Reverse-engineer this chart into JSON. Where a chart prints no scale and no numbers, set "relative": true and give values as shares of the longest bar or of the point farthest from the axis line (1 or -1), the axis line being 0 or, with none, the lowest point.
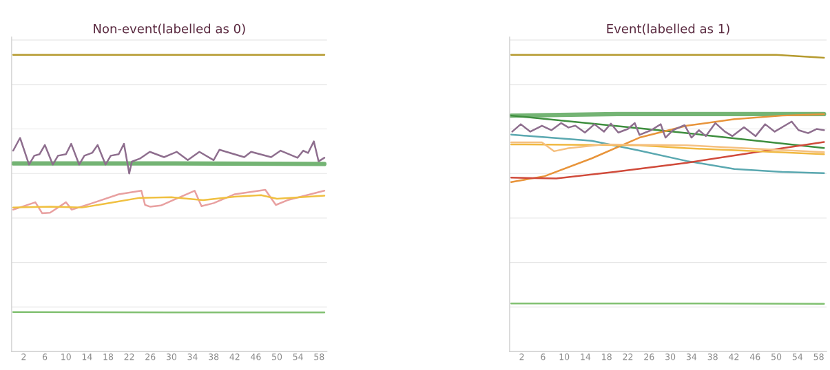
{
  "chart_data": [
    {
      "type": "line",
      "title": "Non-event(labelled as 0)",
      "relative": true,
      "grid": "y",
      "xlim": [
        -0.3,
        59.5
      ],
      "xticks": [
        2,
        6,
        10,
        14,
        18,
        22,
        26,
        30,
        34,
        38,
        42,
        46,
        50,
        54,
        58
      ],
      "series": [
        {
          "color": "#b59a2e",
          "x": [
            0,
            30,
            59
          ],
          "values": [
            1.0,
            1.0,
            1.0
          ]
        },
        {
          "color": "#74b474",
          "x": [
            0,
            30,
            59
          ],
          "values": [
            0.634,
            0.634,
            0.632
          ]
        },
        {
          "color": "#8e6e8e",
          "x": [
            0,
            1.3,
            3,
            4,
            5,
            6,
            7.5,
            8.5,
            10,
            11,
            12.5,
            13.5,
            15,
            16,
            17.5,
            18.5,
            20,
            21,
            22,
            22.5,
            24,
            25.9,
            28.6,
            31,
            33.1,
            35.3,
            38,
            39.1,
            43.8,
            45.1,
            48.9,
            50.7,
            53.9,
            55,
            55.9,
            57,
            57.9,
            59
          ],
          "values": [
            0.677,
            0.72,
            0.63,
            0.66,
            0.665,
            0.696,
            0.63,
            0.66,
            0.665,
            0.7,
            0.63,
            0.66,
            0.67,
            0.696,
            0.63,
            0.66,
            0.665,
            0.7,
            0.6,
            0.64,
            0.65,
            0.673,
            0.655,
            0.673,
            0.645,
            0.673,
            0.645,
            0.68,
            0.655,
            0.673,
            0.655,
            0.677,
            0.653,
            0.677,
            0.669,
            0.708,
            0.641,
            0.653
          ]
        },
        {
          "color": "#e8a0a0",
          "x": [
            0,
            4.2,
            5.5,
            7,
            10,
            11.1,
            15,
            20,
            24.3,
            25,
            26,
            28,
            34.4,
            35.7,
            38,
            42,
            47.8,
            49.8,
            52,
            59
          ],
          "values": [
            0.478,
            0.503,
            0.466,
            0.468,
            0.503,
            0.478,
            0.5,
            0.53,
            0.542,
            0.494,
            0.488,
            0.492,
            0.542,
            0.49,
            0.5,
            0.53,
            0.545,
            0.494,
            0.51,
            0.542
          ]
        },
        {
          "color": "#f0c040",
          "x": [
            0,
            7,
            13,
            18,
            24,
            30,
            36,
            42,
            47,
            50,
            59
          ],
          "values": [
            0.485,
            0.488,
            0.485,
            0.5,
            0.518,
            0.52,
            0.51,
            0.522,
            0.527,
            0.515,
            0.525
          ]
        },
        {
          "color": "#80c070",
          "x": [
            0,
            30,
            59
          ],
          "values": [
            0.133,
            0.132,
            0.132
          ]
        }
      ]
    },
    {
      "type": "line",
      "title": "Event(labelled as 1)",
      "relative": true,
      "grid": "y",
      "xlim": [
        -0.3,
        59.5
      ],
      "xticks": [
        2,
        6,
        10,
        14,
        18,
        22,
        26,
        30,
        34,
        38,
        42,
        46,
        50,
        54,
        58
      ],
      "series": [
        {
          "color": "#b59a2e",
          "x": [
            0,
            50,
            59
          ],
          "values": [
            1.0,
            1.0,
            0.99
          ]
        },
        {
          "color": "#74b474",
          "x": [
            0,
            20,
            59
          ],
          "values": [
            0.795,
            0.8,
            0.8
          ]
        },
        {
          "color": "#3e8e3e",
          "x": [
            0,
            30,
            59
          ],
          "values": [
            0.795,
            0.742,
            0.686
          ]
        },
        {
          "color": "#5aa8b0",
          "x": [
            0,
            15.2,
            24.2,
            33.1,
            42.1,
            51.1,
            59
          ],
          "values": [
            0.731,
            0.71,
            0.677,
            0.642,
            0.615,
            0.605,
            0.601
          ]
        },
        {
          "color": "#e8943a",
          "x": [
            0,
            6.3,
            15.2,
            24.2,
            33.1,
            42.1,
            51.1,
            59
          ],
          "values": [
            0.571,
            0.591,
            0.651,
            0.721,
            0.761,
            0.783,
            0.795,
            0.8
          ]
        },
        {
          "color": "#d04a3a",
          "x": [
            0,
            8.5,
            19.7,
            33.1,
            46.6,
            59
          ],
          "values": [
            0.586,
            0.583,
            0.606,
            0.636,
            0.673,
            0.706
          ]
        },
        {
          "color": "#f0b840",
          "x": [
            0,
            24.2,
            33.1,
            46.6,
            59
          ],
          "values": [
            0.698,
            0.695,
            0.685,
            0.675,
            0.665
          ]
        },
        {
          "color": "#f5c080",
          "x": [
            0,
            5.8,
            8.1,
            10.8,
            17.5,
            33.1,
            59
          ],
          "values": [
            0.705,
            0.705,
            0.675,
            0.685,
            0.698,
            0.695,
            0.672
          ]
        },
        {
          "color": "#8e6e8e",
          "x": [
            0.2,
            1.8,
            3.6,
            5.8,
            7.6,
            9.4,
            10.8,
            12.1,
            13.9,
            15.7,
            17.5,
            18.8,
            20.2,
            22,
            23.3,
            24.2,
            26.4,
            28.2,
            29.1,
            30.5,
            32.7,
            34,
            35.4,
            36.7,
            38.5,
            40.3,
            41.7,
            43.9,
            46.1,
            47.9,
            49.7,
            52.9,
            54.2,
            56,
            57.6,
            59
          ],
          "values": [
            0.741,
            0.766,
            0.741,
            0.761,
            0.746,
            0.77,
            0.755,
            0.761,
            0.738,
            0.766,
            0.741,
            0.768,
            0.738,
            0.75,
            0.77,
            0.73,
            0.746,
            0.766,
            0.721,
            0.746,
            0.763,
            0.721,
            0.746,
            0.726,
            0.77,
            0.741,
            0.726,
            0.756,
            0.726,
            0.766,
            0.741,
            0.775,
            0.746,
            0.736,
            0.75,
            0.746
          ]
        },
        {
          "color": "#80c070",
          "x": [
            0,
            30,
            59
          ],
          "values": [
            0.162,
            0.162,
            0.161
          ]
        }
      ]
    }
  ]
}
